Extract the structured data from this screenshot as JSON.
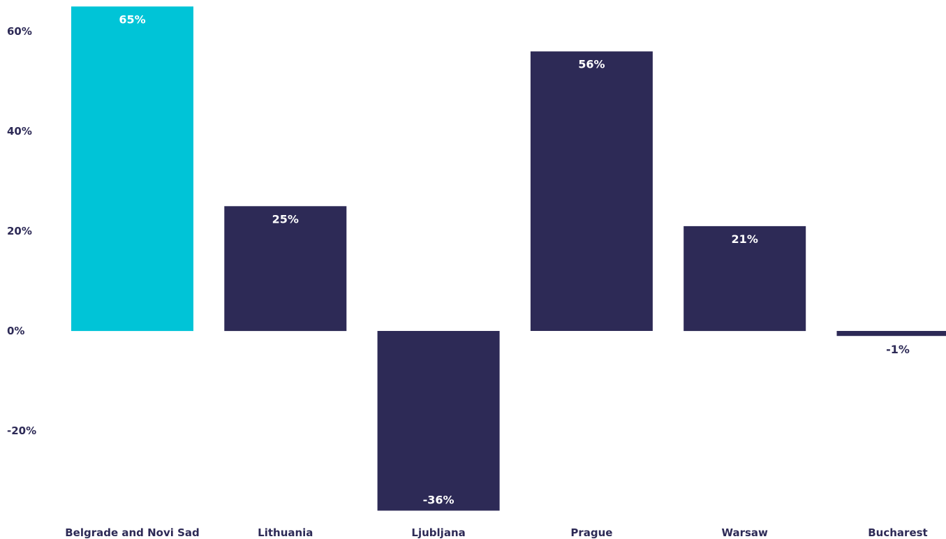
{
  "chart_data": {
    "type": "bar",
    "title": "",
    "xlabel": "",
    "ylabel": "",
    "categories": [
      "Belgrade and Novi Sad",
      "Lithuania",
      "Ljubljana",
      "Prague",
      "Warsaw",
      "Bucharest"
    ],
    "values": [
      65,
      25,
      -36,
      56,
      21,
      -1
    ],
    "data_labels": [
      "65%",
      "25%",
      "-36%",
      "56%",
      "21%",
      "-1%"
    ],
    "y_ticks": [
      {
        "value": 60,
        "label": "60%"
      },
      {
        "value": 40,
        "label": "40%"
      },
      {
        "value": 20,
        "label": "20%"
      },
      {
        "value": 0,
        "label": "0%"
      },
      {
        "value": -20,
        "label": "-20%"
      }
    ],
    "ylim": [
      -36,
      65
    ],
    "grid": false,
    "legend": "none",
    "colors": {
      "highlight": "#00c4d7",
      "default": "#2d2a56",
      "text": "#2d2a56",
      "label_on_bar": "#ffffff"
    },
    "highlight_index": 0
  }
}
